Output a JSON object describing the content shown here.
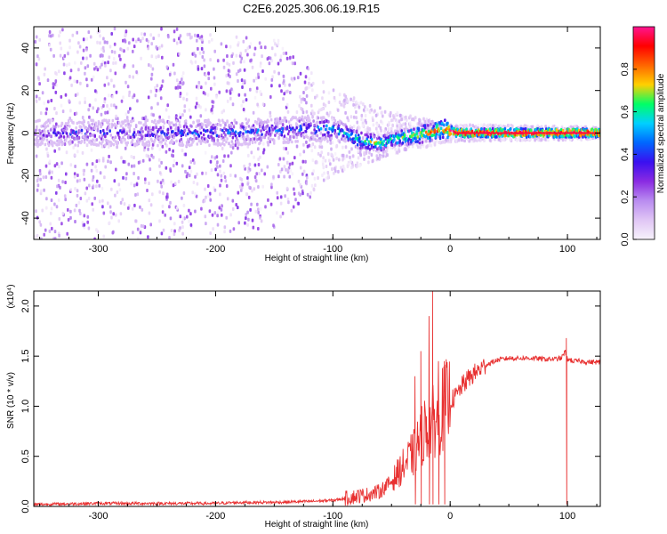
{
  "figure_title": "C2E6.2025.306.06.19.R15",
  "colors": {
    "background": "#ffffff",
    "snr_line": "#e83030",
    "colorbar_stops": [
      "#f7f2fb",
      "#e0c6f5",
      "#b98cf0",
      "#8a2be2",
      "#3a10f0",
      "#0066ff",
      "#00d0ff",
      "#00ff66",
      "#ffd000",
      "#ff6600",
      "#ff0000",
      "#ff1490"
    ]
  },
  "chart_data": [
    {
      "type": "heatmap",
      "title": "",
      "xlabel": "Height of straight line (km)",
      "ylabel": "Frequency (Hz)",
      "xlim": [
        -355,
        128
      ],
      "ylim": [
        -50,
        50
      ],
      "x_ticks": [
        -300,
        -200,
        -100,
        0,
        100
      ],
      "x_tick_labels": [
        "-300",
        "-200",
        "-100",
        "0",
        "100"
      ],
      "y_ticks": [
        -40,
        -20,
        0,
        20,
        40
      ],
      "y_tick_labels": [
        "-40",
        "-20",
        "0",
        "20",
        "40"
      ],
      "colorbar": {
        "label": "Normalized spectral amplitude",
        "range": [
          0.0,
          1.0
        ],
        "ticks": [
          0.0,
          0.2,
          0.4,
          0.6,
          0.8
        ],
        "tick_labels": [
          "0.0",
          "0.2",
          "0.4",
          "0.6",
          "0.8"
        ]
      },
      "ridge": {
        "description": "dominant frequency track vs height",
        "height_km": [
          -350,
          -300,
          -250,
          -200,
          -150,
          -120,
          -100,
          -90,
          -80,
          -70,
          -60,
          -50,
          -40,
          -30,
          -20,
          -10,
          -5,
          0,
          5,
          20,
          60,
          100,
          128
        ],
        "frequency_hz": [
          0,
          0,
          0,
          0,
          1,
          2,
          2,
          0,
          -3,
          -4,
          -5,
          -3,
          -2,
          -1,
          0,
          1,
          2,
          1,
          0,
          0,
          0,
          0,
          0
        ],
        "amplitude": [
          0.3,
          0.35,
          0.35,
          0.4,
          0.4,
          0.45,
          0.5,
          0.55,
          0.6,
          0.65,
          0.65,
          0.6,
          0.65,
          0.7,
          0.75,
          0.8,
          0.85,
          0.9,
          0.95,
          0.95,
          0.95,
          0.95,
          0.95
        ]
      },
      "scatter_spread_hz": {
        "height_km": [
          -350,
          -250,
          -150,
          -100,
          -50,
          0,
          128
        ],
        "half_width_hz": [
          50,
          50,
          45,
          20,
          10,
          4,
          3
        ]
      }
    },
    {
      "type": "line",
      "title": "",
      "xlabel": "Height of straight line (km)",
      "ylabel": "SNR (10 * v/v)",
      "y_scale_label": "(x10⁴)",
      "xlim": [
        -355,
        128
      ],
      "ylim": [
        0,
        2.15
      ],
      "x_ticks": [
        -300,
        -200,
        -100,
        0,
        100
      ],
      "x_tick_labels": [
        "-300",
        "-200",
        "-100",
        "0",
        "100"
      ],
      "y_ticks": [
        0,
        0.5,
        1.0,
        1.5,
        2.0
      ],
      "y_tick_labels": [
        "0.0",
        "0.5",
        "1.0",
        "1.5",
        "2.0"
      ],
      "series": [
        {
          "name": "SNR",
          "x": [
            -355,
            -300,
            -250,
            -200,
            -180,
            -150,
            -120,
            -100,
            -90,
            -80,
            -70,
            -60,
            -50,
            -40,
            -30,
            -25,
            -20,
            -15,
            -10,
            -5,
            0,
            5,
            10,
            15,
            20,
            30,
            40,
            50,
            60,
            70,
            80,
            90,
            95,
            98,
            100,
            105,
            110,
            120,
            128
          ],
          "y": [
            0.02,
            0.03,
            0.03,
            0.03,
            0.04,
            0.04,
            0.05,
            0.06,
            0.08,
            0.1,
            0.12,
            0.15,
            0.25,
            0.4,
            0.55,
            0.7,
            0.8,
            0.85,
            0.9,
            1.0,
            1.05,
            1.1,
            1.2,
            1.27,
            1.32,
            1.41,
            1.46,
            1.48,
            1.48,
            1.48,
            1.47,
            1.47,
            1.48,
            1.55,
            1.47,
            1.45,
            1.45,
            1.44,
            1.44
          ]
        }
      ],
      "spikes": [
        {
          "x": -15,
          "y": 2.15
        },
        {
          "x": -18,
          "y": 1.9
        },
        {
          "x": -25,
          "y": 1.55
        },
        {
          "x": -30,
          "y": 1.3
        },
        {
          "x": -10,
          "y": 1.45
        },
        {
          "x": -5,
          "y": 1.45
        },
        {
          "x": 99,
          "y": 1.68
        }
      ]
    }
  ]
}
